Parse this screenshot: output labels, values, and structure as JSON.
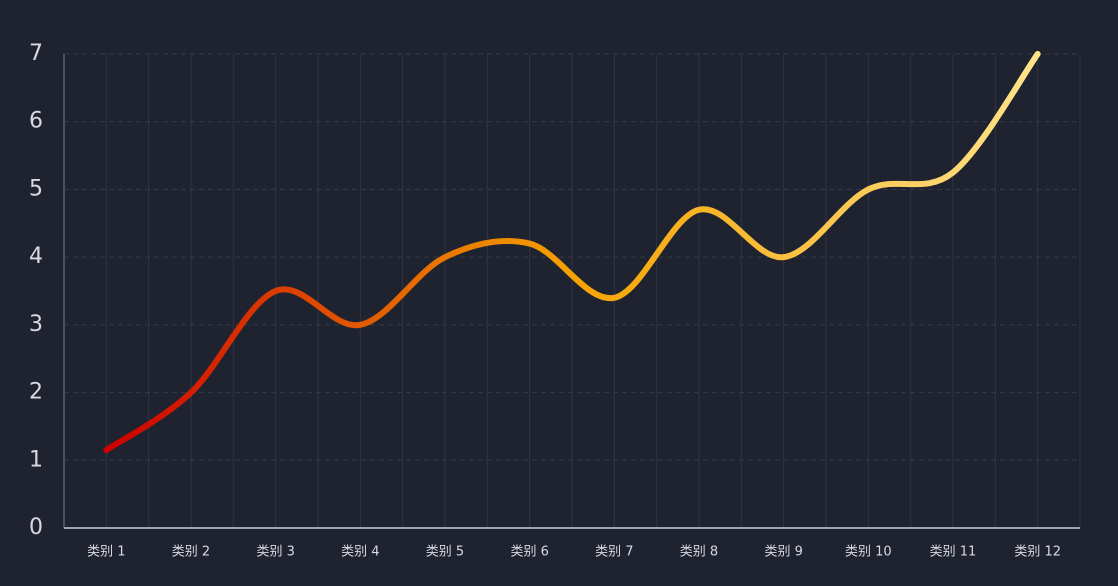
{
  "chart_data": {
    "type": "line",
    "categories": [
      "类别 1",
      "类别 2",
      "类别 3",
      "类别 4",
      "类别 5",
      "类别 6",
      "类别 7",
      "类别 8",
      "类别 9",
      "类别 10",
      "类别 11",
      "类别 12"
    ],
    "values": [
      1.15,
      2,
      3.5,
      3,
      4,
      4.2,
      3.4,
      4.7,
      4,
      5,
      5.25,
      7
    ],
    "colors": [
      "#cc0000",
      "#f5a300",
      "#ffe38a"
    ],
    "smooth": true,
    "ylim": [
      0,
      7
    ],
    "yticks": [
      0,
      1,
      2,
      3,
      4,
      5,
      6,
      7
    ],
    "grid": true
  }
}
